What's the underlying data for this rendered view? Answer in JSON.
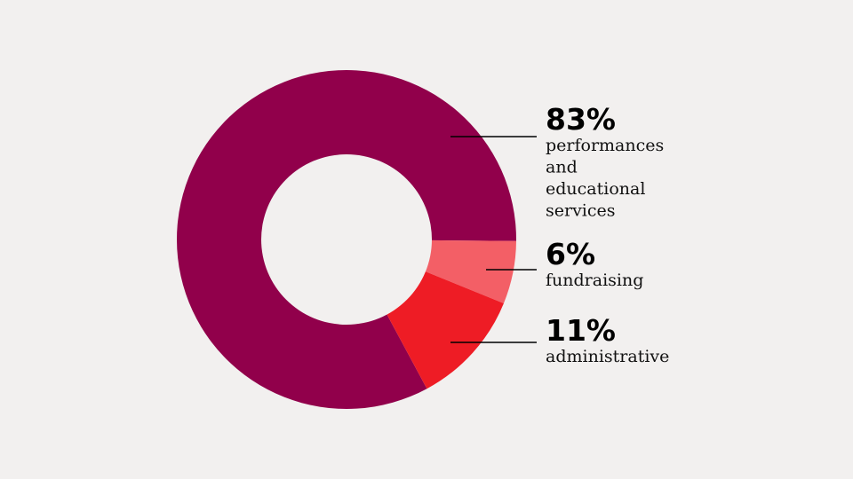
{
  "chart_data": {
    "type": "pie",
    "variant": "donut",
    "title": "",
    "slices": [
      {
        "label": "performances and educational services",
        "label_lines": [
          "performances",
          "and",
          "educational",
          "services"
        ],
        "value": 83,
        "value_label": "83%",
        "color": "#91004b"
      },
      {
        "label": "fundraising",
        "label_lines": [
          "fundraising"
        ],
        "value": 6,
        "value_label": "6%",
        "color": "#f35f66"
      },
      {
        "label": "administrative",
        "label_lines": [
          "administrative"
        ],
        "value": 11,
        "value_label": "11%",
        "color": "#ee1c25"
      }
    ],
    "legend": "right, leader lines",
    "background": "#f2f0ef"
  }
}
